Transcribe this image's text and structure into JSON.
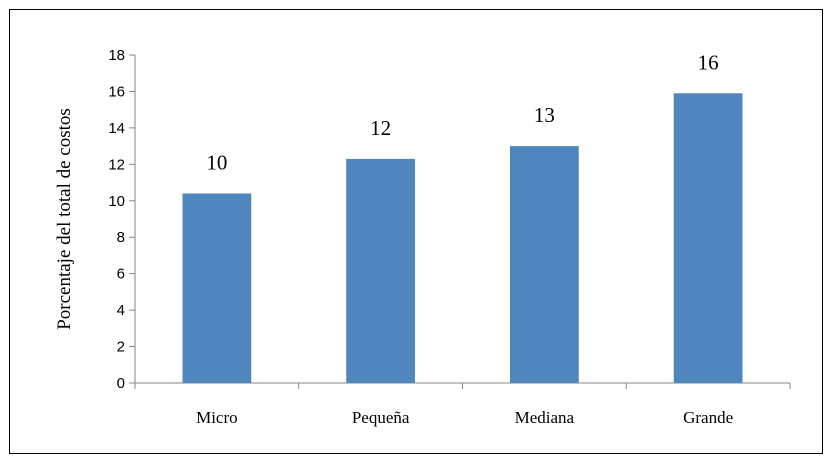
{
  "chart_data": {
    "type": "bar",
    "title": "",
    "xlabel": "",
    "ylabel": "Porcentaje del total de costos",
    "categories": [
      "Micro",
      "Pequeña",
      "Mediana",
      "Grande"
    ],
    "values": [
      10.4,
      12.3,
      13.0,
      15.9
    ],
    "data_labels": [
      "10",
      "12",
      "13",
      "16"
    ],
    "yticks": [
      0,
      2,
      4,
      6,
      8,
      10,
      12,
      14,
      16,
      18
    ],
    "ylim": [
      0,
      18
    ],
    "grid": false,
    "legend": "none",
    "bar_color": "#4f86bd"
  }
}
